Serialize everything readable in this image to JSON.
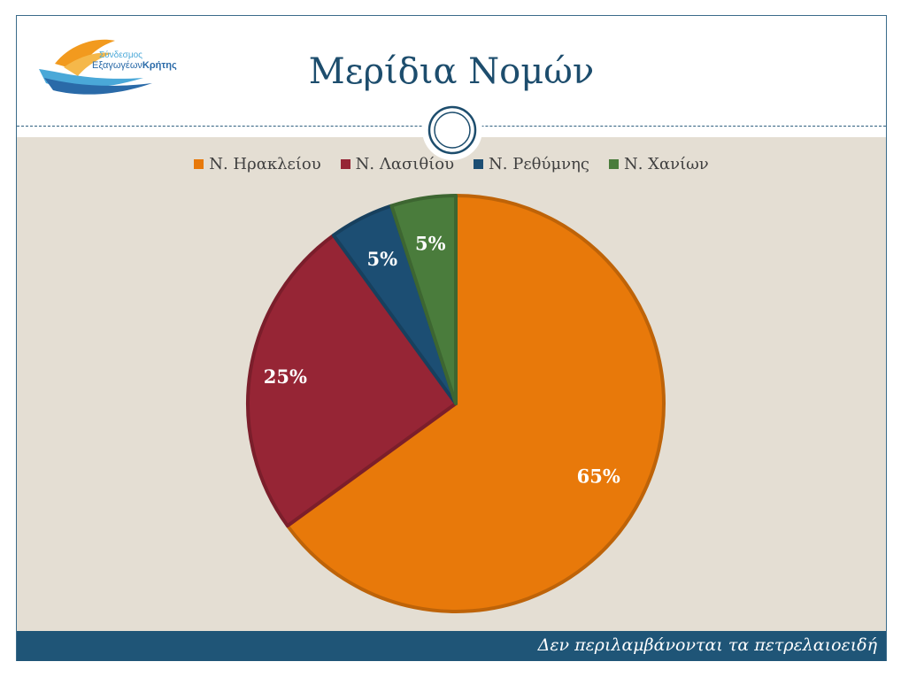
{
  "slide": {
    "title": "Μερίδια Νομών",
    "footer": "Δεν περιλαμβάνονται τα πετρελαιοειδή"
  },
  "logo": {
    "line1": "Σύνδεσμος",
    "line2_a": "Εξαγωγέων",
    "line2_b": "Κρήτης"
  },
  "chart_data": {
    "type": "pie",
    "categories": [
      "Ν. Ηρακλείου",
      "Ν. Λασιθίου",
      "Ν. Ρεθύμνης",
      "Ν. Χανίων"
    ],
    "values": [
      65,
      25,
      5,
      5
    ],
    "labels": [
      "65%",
      "25%",
      "5%",
      "5%"
    ],
    "colors": [
      "#e8790a",
      "#962535",
      "#1c4e73",
      "#4a7c3c"
    ],
    "legend_position": "top",
    "start_angle": "12 o'clock, clockwise"
  }
}
